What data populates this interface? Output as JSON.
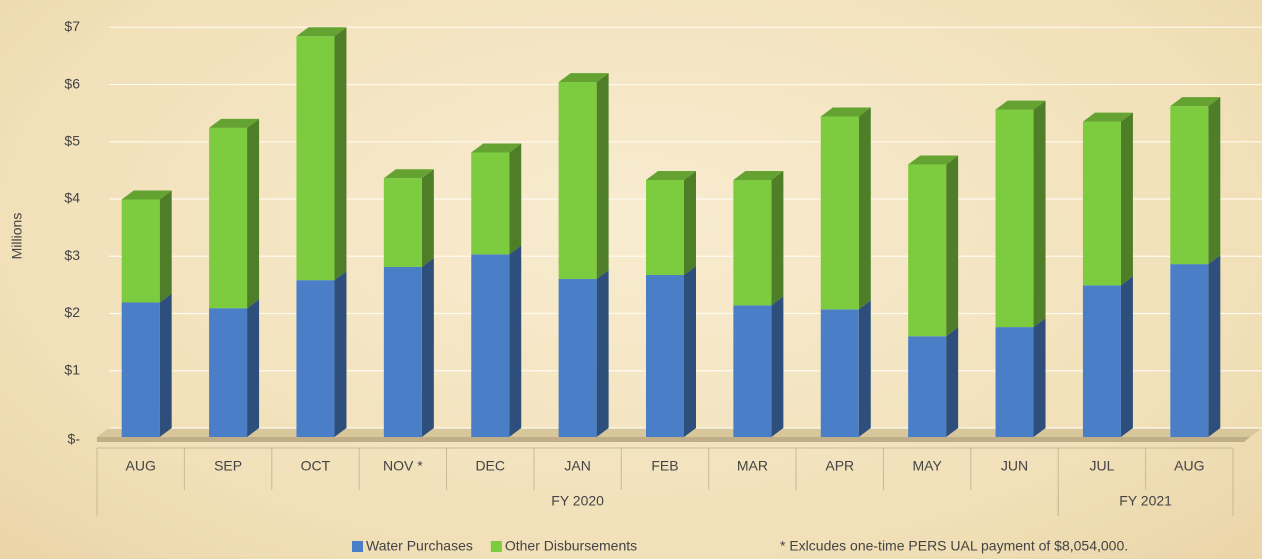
{
  "chart_data": {
    "type": "bar3d_stacked",
    "y_axis_label": "Millions",
    "categories": [
      "AUG",
      "SEP",
      "OCT",
      "NOV *",
      "DEC",
      "JAN",
      "FEB",
      "MAR",
      "APR",
      "MAY",
      "JUN",
      "JUL",
      "AUG"
    ],
    "groups": [
      {
        "label": "FY 2020",
        "span": 11
      },
      {
        "label": "FY 2021",
        "span": 2
      }
    ],
    "series": [
      {
        "name": "Water Purchases",
        "color": "#4a7fc8",
        "values": [
          2.35,
          2.25,
          2.74,
          2.97,
          3.19,
          2.76,
          2.83,
          2.3,
          2.23,
          1.76,
          1.92,
          2.65,
          3.02
        ]
      },
      {
        "name": "Other Disbursements",
        "color": "#7dcc3f",
        "values": [
          1.8,
          3.15,
          4.26,
          1.55,
          1.78,
          3.44,
          1.66,
          2.19,
          3.37,
          3.0,
          3.8,
          2.86,
          2.76
        ]
      }
    ],
    "ylim": [
      0,
      7.25
    ],
    "yticks": [
      {
        "value": 0,
        "label": "$-"
      },
      {
        "value": 1,
        "label": "$1"
      },
      {
        "value": 2,
        "label": "$2"
      },
      {
        "value": 3,
        "label": "$3"
      },
      {
        "value": 4,
        "label": "$4"
      },
      {
        "value": 5,
        "label": "$5"
      },
      {
        "value": 6,
        "label": "$6"
      },
      {
        "value": 7,
        "label": "$7"
      }
    ],
    "grid": true,
    "legend": "bottom",
    "footnote": "* Exlcudes one-time PERS UAL payment of $8,054,000."
  }
}
